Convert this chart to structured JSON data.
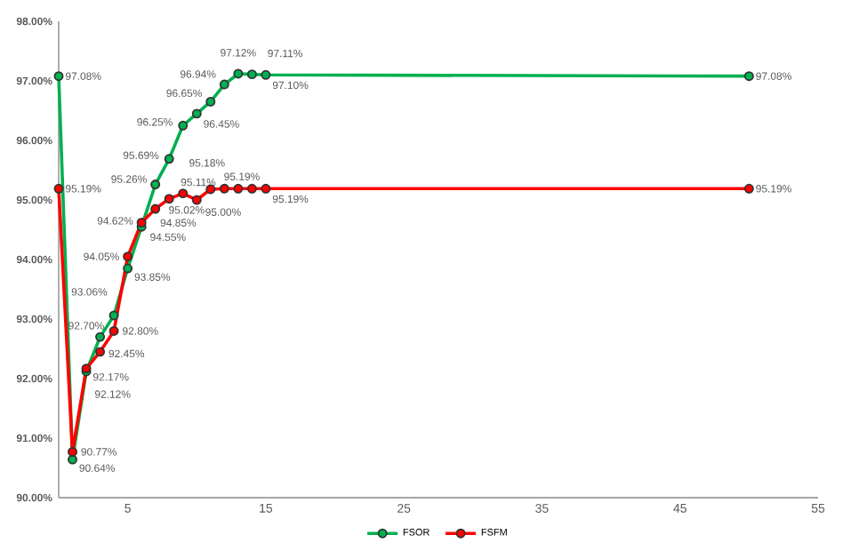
{
  "chart_data": {
    "type": "line",
    "x": [
      0,
      1,
      2,
      3,
      4,
      5,
      6,
      7,
      8,
      9,
      10,
      11,
      12,
      13,
      14,
      15,
      50
    ],
    "series": [
      {
        "name": "FSOR",
        "color": "#00b050",
        "values": [
          97.08,
          90.64,
          92.12,
          92.7,
          93.06,
          93.85,
          94.55,
          95.26,
          95.69,
          96.25,
          96.45,
          96.65,
          96.94,
          97.12,
          97.11,
          97.1,
          97.08
        ],
        "value_labels": [
          "97.08%",
          "90.64%",
          "92.12%",
          "92.70%",
          "93.06%",
          "93.85%",
          "94.55%",
          "95.26%",
          "95.69%",
          "96.25%",
          "96.45%",
          "96.65%",
          "96.94%",
          "97.12%",
          "97.11%",
          "97.10%",
          "97.08%"
        ]
      },
      {
        "name": "FSFM",
        "color": "#ff0000",
        "values": [
          95.19,
          90.77,
          92.17,
          92.45,
          92.8,
          94.05,
          94.62,
          94.85,
          95.02,
          95.11,
          95.0,
          95.18,
          95.19,
          95.19,
          95.19,
          95.19,
          95.19
        ],
        "value_labels": [
          "95.19%",
          "90.77%",
          "92.17%",
          "92.45%",
          "92.80%",
          "94.05%",
          "94.62%",
          "94.85%",
          "95.02%",
          "95.11%",
          "95.00%",
          "95.18%",
          "95.19%",
          null,
          null,
          "95.19%",
          "95.19%"
        ]
      }
    ],
    "xlim": [
      0,
      55
    ],
    "xticks": [
      5,
      15,
      25,
      35,
      45,
      55
    ],
    "ylim": [
      90,
      98
    ],
    "yticks": [
      {
        "value": 90,
        "label": "90.00%"
      },
      {
        "value": 91,
        "label": "91.00%"
      },
      {
        "value": 92,
        "label": "92.00%"
      },
      {
        "value": 93,
        "label": "93.00%"
      },
      {
        "value": 94,
        "label": "94.00%"
      },
      {
        "value": 95,
        "label": "95.00%"
      },
      {
        "value": 96,
        "label": "96.00%"
      },
      {
        "value": 97,
        "label": "97.00%"
      },
      {
        "value": 98,
        "label": "98.00%"
      }
    ],
    "marker": "circle",
    "legend": "bottom"
  }
}
